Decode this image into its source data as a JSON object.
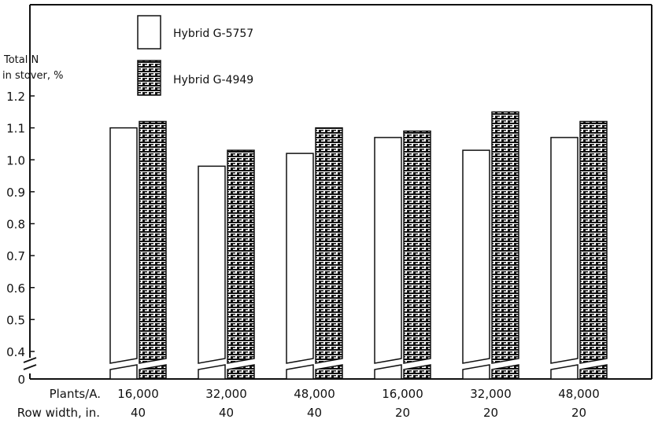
{
  "chart_data": {
    "type": "bar",
    "title": "",
    "ylabel": "Total N\nin stover, %",
    "ylim": [
      0,
      1.2
    ],
    "y_break": true,
    "yticks": [
      0,
      0.4,
      0.5,
      0.6,
      0.7,
      0.8,
      0.9,
      1.0,
      1.1,
      1.2
    ],
    "ytick_labels": [
      "0",
      "0.4",
      "0.5",
      "0.6",
      "0.7",
      "0.8",
      "0.9",
      "1.0",
      "1.1",
      "1.2"
    ],
    "x_row_headers": [
      "Plants/A.",
      "Row width, in."
    ],
    "categories": [
      {
        "plants": "16,000",
        "row_width": "40"
      },
      {
        "plants": "32,000",
        "row_width": "40"
      },
      {
        "plants": "48,000",
        "row_width": "40"
      },
      {
        "plants": "16,000",
        "row_width": "20"
      },
      {
        "plants": "32,000",
        "row_width": "20"
      },
      {
        "plants": "48,000",
        "row_width": "20"
      }
    ],
    "series": [
      {
        "name": "Hybrid G-5757",
        "pattern": "open",
        "values": [
          1.1,
          0.98,
          1.02,
          1.07,
          1.03,
          1.07
        ]
      },
      {
        "name": "Hybrid G-4949",
        "pattern": "hatched",
        "values": [
          1.12,
          1.03,
          1.1,
          1.09,
          1.15,
          1.12
        ]
      }
    ],
    "legend_position": "top-left",
    "grid": false
  }
}
